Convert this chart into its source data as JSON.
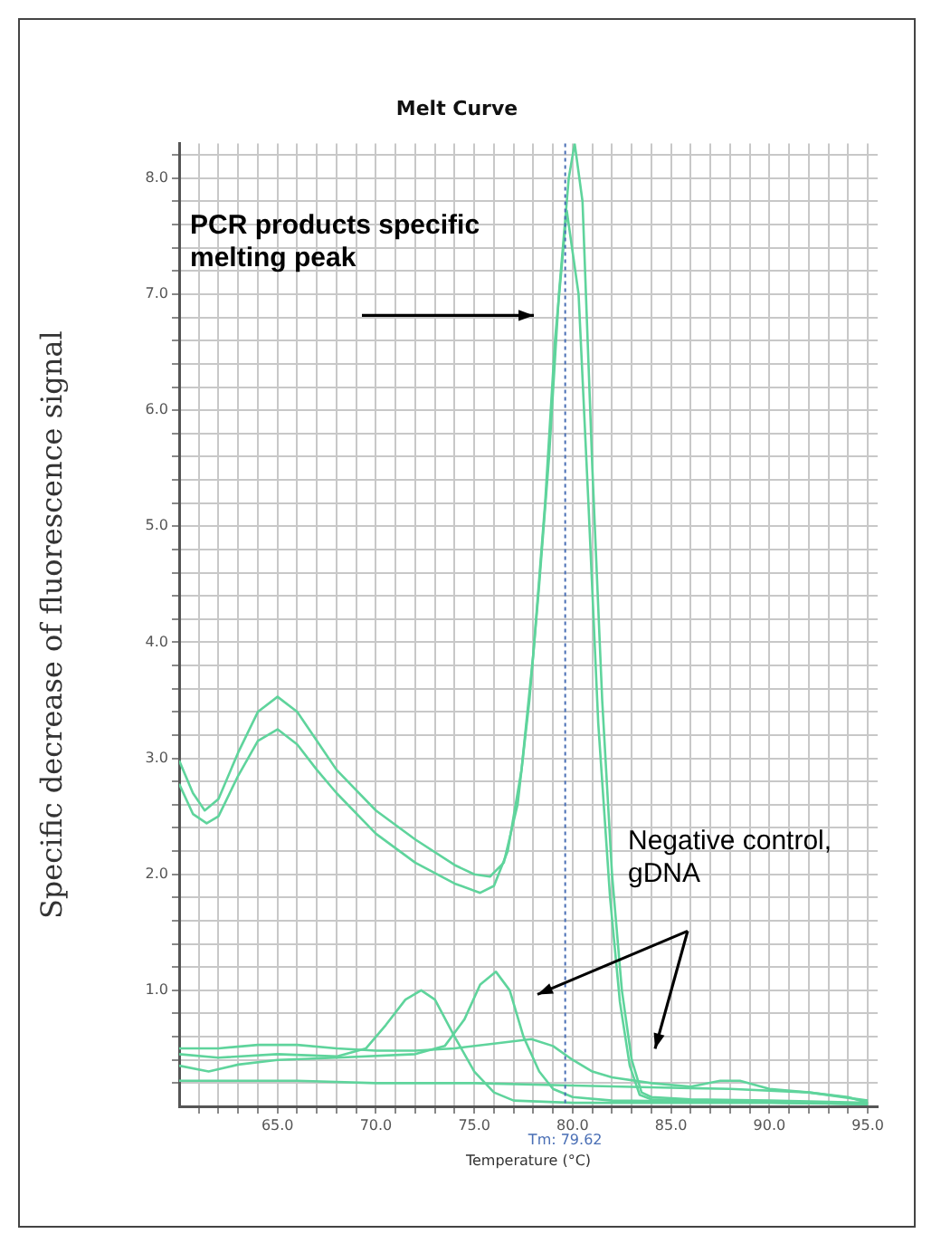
{
  "chart_data": {
    "type": "line",
    "title": "Melt Curve",
    "xlabel": "Temperature (°C)",
    "ylabel": "Specific decrease of fluorescence signal",
    "xlim": [
      60,
      95.5
    ],
    "ylim": [
      0,
      8.3
    ],
    "xticks": [
      {
        "value": 61,
        "label": null
      },
      {
        "value": 62,
        "label": null
      },
      {
        "value": 63,
        "label": null
      },
      {
        "value": 64,
        "label": null
      },
      {
        "value": 65,
        "label": "65.0"
      },
      {
        "value": 66,
        "label": null
      },
      {
        "value": 67,
        "label": null
      },
      {
        "value": 68,
        "label": null
      },
      {
        "value": 69,
        "label": null
      },
      {
        "value": 70,
        "label": "70.0"
      },
      {
        "value": 71,
        "label": null
      },
      {
        "value": 72,
        "label": null
      },
      {
        "value": 73,
        "label": null
      },
      {
        "value": 74,
        "label": null
      },
      {
        "value": 75,
        "label": "75.0"
      },
      {
        "value": 76,
        "label": null
      },
      {
        "value": 77,
        "label": null
      },
      {
        "value": 78,
        "label": null
      },
      {
        "value": 79,
        "label": null
      },
      {
        "value": 80,
        "label": "80.0"
      },
      {
        "value": 81,
        "label": null
      },
      {
        "value": 82,
        "label": null
      },
      {
        "value": 83,
        "label": null
      },
      {
        "value": 84,
        "label": null
      },
      {
        "value": 85,
        "label": "85.0"
      },
      {
        "value": 86,
        "label": null
      },
      {
        "value": 87,
        "label": null
      },
      {
        "value": 88,
        "label": null
      },
      {
        "value": 89,
        "label": null
      },
      {
        "value": 90,
        "label": "90.0"
      },
      {
        "value": 91,
        "label": null
      },
      {
        "value": 92,
        "label": null
      },
      {
        "value": 93,
        "label": null
      },
      {
        "value": 94,
        "label": null
      },
      {
        "value": 95,
        "label": "95.0"
      }
    ],
    "yticks": [
      {
        "value": 0.2,
        "label": null
      },
      {
        "value": 0.4,
        "label": null
      },
      {
        "value": 0.6,
        "label": null
      },
      {
        "value": 0.8,
        "label": null
      },
      {
        "value": 1,
        "label": "1.0"
      },
      {
        "value": 1.2,
        "label": null
      },
      {
        "value": 1.4,
        "label": null
      },
      {
        "value": 1.6,
        "label": null
      },
      {
        "value": 1.8,
        "label": null
      },
      {
        "value": 2,
        "label": "2.0"
      },
      {
        "value": 2.2,
        "label": null
      },
      {
        "value": 2.4,
        "label": null
      },
      {
        "value": 2.6,
        "label": null
      },
      {
        "value": 2.8,
        "label": null
      },
      {
        "value": 3,
        "label": "3.0"
      },
      {
        "value": 3.2,
        "label": null
      },
      {
        "value": 3.4,
        "label": null
      },
      {
        "value": 3.6,
        "label": null
      },
      {
        "value": 3.8,
        "label": null
      },
      {
        "value": 4,
        "label": "4.0"
      },
      {
        "value": 4.2,
        "label": null
      },
      {
        "value": 4.4,
        "label": null
      },
      {
        "value": 4.6,
        "label": null
      },
      {
        "value": 4.8,
        "label": null
      },
      {
        "value": 5,
        "label": "5.0"
      },
      {
        "value": 5.2,
        "label": null
      },
      {
        "value": 5.4,
        "label": null
      },
      {
        "value": 5.6,
        "label": null
      },
      {
        "value": 5.8,
        "label": null
      },
      {
        "value": 6,
        "label": "6.0"
      },
      {
        "value": 6.2,
        "label": null
      },
      {
        "value": 6.4,
        "label": null
      },
      {
        "value": 6.6,
        "label": null
      },
      {
        "value": 6.8,
        "label": null
      },
      {
        "value": 7,
        "label": "7.0"
      },
      {
        "value": 7.2,
        "label": null
      },
      {
        "value": 7.4,
        "label": null
      },
      {
        "value": 7.6,
        "label": null
      },
      {
        "value": 7.8,
        "label": null
      },
      {
        "value": 8,
        "label": "8.0"
      },
      {
        "value": 8.2,
        "label": null
      }
    ],
    "grid": true,
    "series": [
      {
        "color": "#5fd49c",
        "x": [
          60,
          60.7,
          61.3,
          62,
          63,
          64,
          65,
          66,
          67,
          68,
          70,
          72,
          74,
          75,
          75.8,
          76.5,
          77.2,
          77.8,
          78.3,
          78.8,
          79.3,
          79.8,
          80.1,
          80.5,
          81,
          81.5,
          82,
          82.5,
          83,
          83.5,
          84,
          86,
          90,
          95
        ],
        "values": [
          2.98,
          2.7,
          2.55,
          2.65,
          3.05,
          3.4,
          3.53,
          3.4,
          3.15,
          2.9,
          2.55,
          2.3,
          2.08,
          2.0,
          1.98,
          2.1,
          2.6,
          3.5,
          4.5,
          5.6,
          7.0,
          8.0,
          8.3,
          7.8,
          5.5,
          3.5,
          2.0,
          1.0,
          0.4,
          0.12,
          0.08,
          0.06,
          0.05,
          0.03
        ]
      },
      {
        "color": "#5fd49c",
        "x": [
          60,
          60.7,
          61.4,
          62,
          63,
          64,
          65,
          66,
          67,
          68,
          70,
          72,
          74,
          75.3,
          76,
          76.7,
          77.4,
          78,
          78.6,
          79.1,
          79.7,
          80.3,
          80.8,
          81.3,
          81.9,
          82.4,
          82.9,
          83.4,
          84,
          88,
          95
        ],
        "values": [
          2.78,
          2.52,
          2.44,
          2.5,
          2.85,
          3.15,
          3.25,
          3.12,
          2.9,
          2.7,
          2.35,
          2.1,
          1.92,
          1.84,
          1.9,
          2.2,
          2.9,
          3.9,
          5.2,
          6.6,
          7.72,
          7.0,
          5.2,
          3.3,
          1.8,
          0.9,
          0.35,
          0.1,
          0.06,
          0.04,
          0.02
        ]
      },
      {
        "color": "#5fd49c",
        "x": [
          60,
          62,
          65,
          68,
          69.5,
          70.5,
          71.5,
          72.3,
          73,
          74,
          75,
          76,
          77,
          80,
          85,
          90,
          95
        ],
        "values": [
          0.45,
          0.42,
          0.45,
          0.43,
          0.5,
          0.7,
          0.92,
          1.0,
          0.92,
          0.6,
          0.3,
          0.12,
          0.05,
          0.03,
          0.03,
          0.03,
          0.02
        ]
      },
      {
        "color": "#5fd49c",
        "x": [
          60,
          61.5,
          63,
          65,
          68,
          72,
          73.5,
          74.5,
          75.3,
          76.1,
          76.8,
          77.5,
          78.3,
          79,
          80,
          82,
          88,
          95
        ],
        "values": [
          0.35,
          0.3,
          0.36,
          0.4,
          0.42,
          0.45,
          0.52,
          0.75,
          1.05,
          1.16,
          1.0,
          0.6,
          0.3,
          0.15,
          0.08,
          0.05,
          0.04,
          0.02
        ]
      },
      {
        "color": "#5fd49c",
        "x": [
          60,
          62,
          64,
          66,
          68,
          70,
          72,
          74,
          76,
          77.9,
          79,
          80,
          81,
          82,
          84,
          86,
          87.5,
          88.5,
          90,
          92,
          94,
          95
        ],
        "values": [
          0.5,
          0.5,
          0.53,
          0.53,
          0.5,
          0.48,
          0.48,
          0.5,
          0.54,
          0.58,
          0.52,
          0.4,
          0.3,
          0.25,
          0.2,
          0.17,
          0.22,
          0.22,
          0.15,
          0.12,
          0.08,
          0.03
        ]
      },
      {
        "color": "#5fd49c",
        "x": [
          60,
          63,
          66,
          70,
          75,
          80,
          85,
          88,
          92,
          95
        ],
        "values": [
          0.22,
          0.22,
          0.22,
          0.2,
          0.2,
          0.18,
          0.16,
          0.15,
          0.12,
          0.05
        ]
      }
    ],
    "ref_lines": [
      {
        "axis": "x",
        "value": 79.62,
        "label": "Tm: 79.62",
        "color": "#4a6fb5",
        "line_style": "dotted"
      }
    ],
    "annotations": [
      "PCR products specific melting peak",
      "Negative control, gDNA"
    ]
  }
}
